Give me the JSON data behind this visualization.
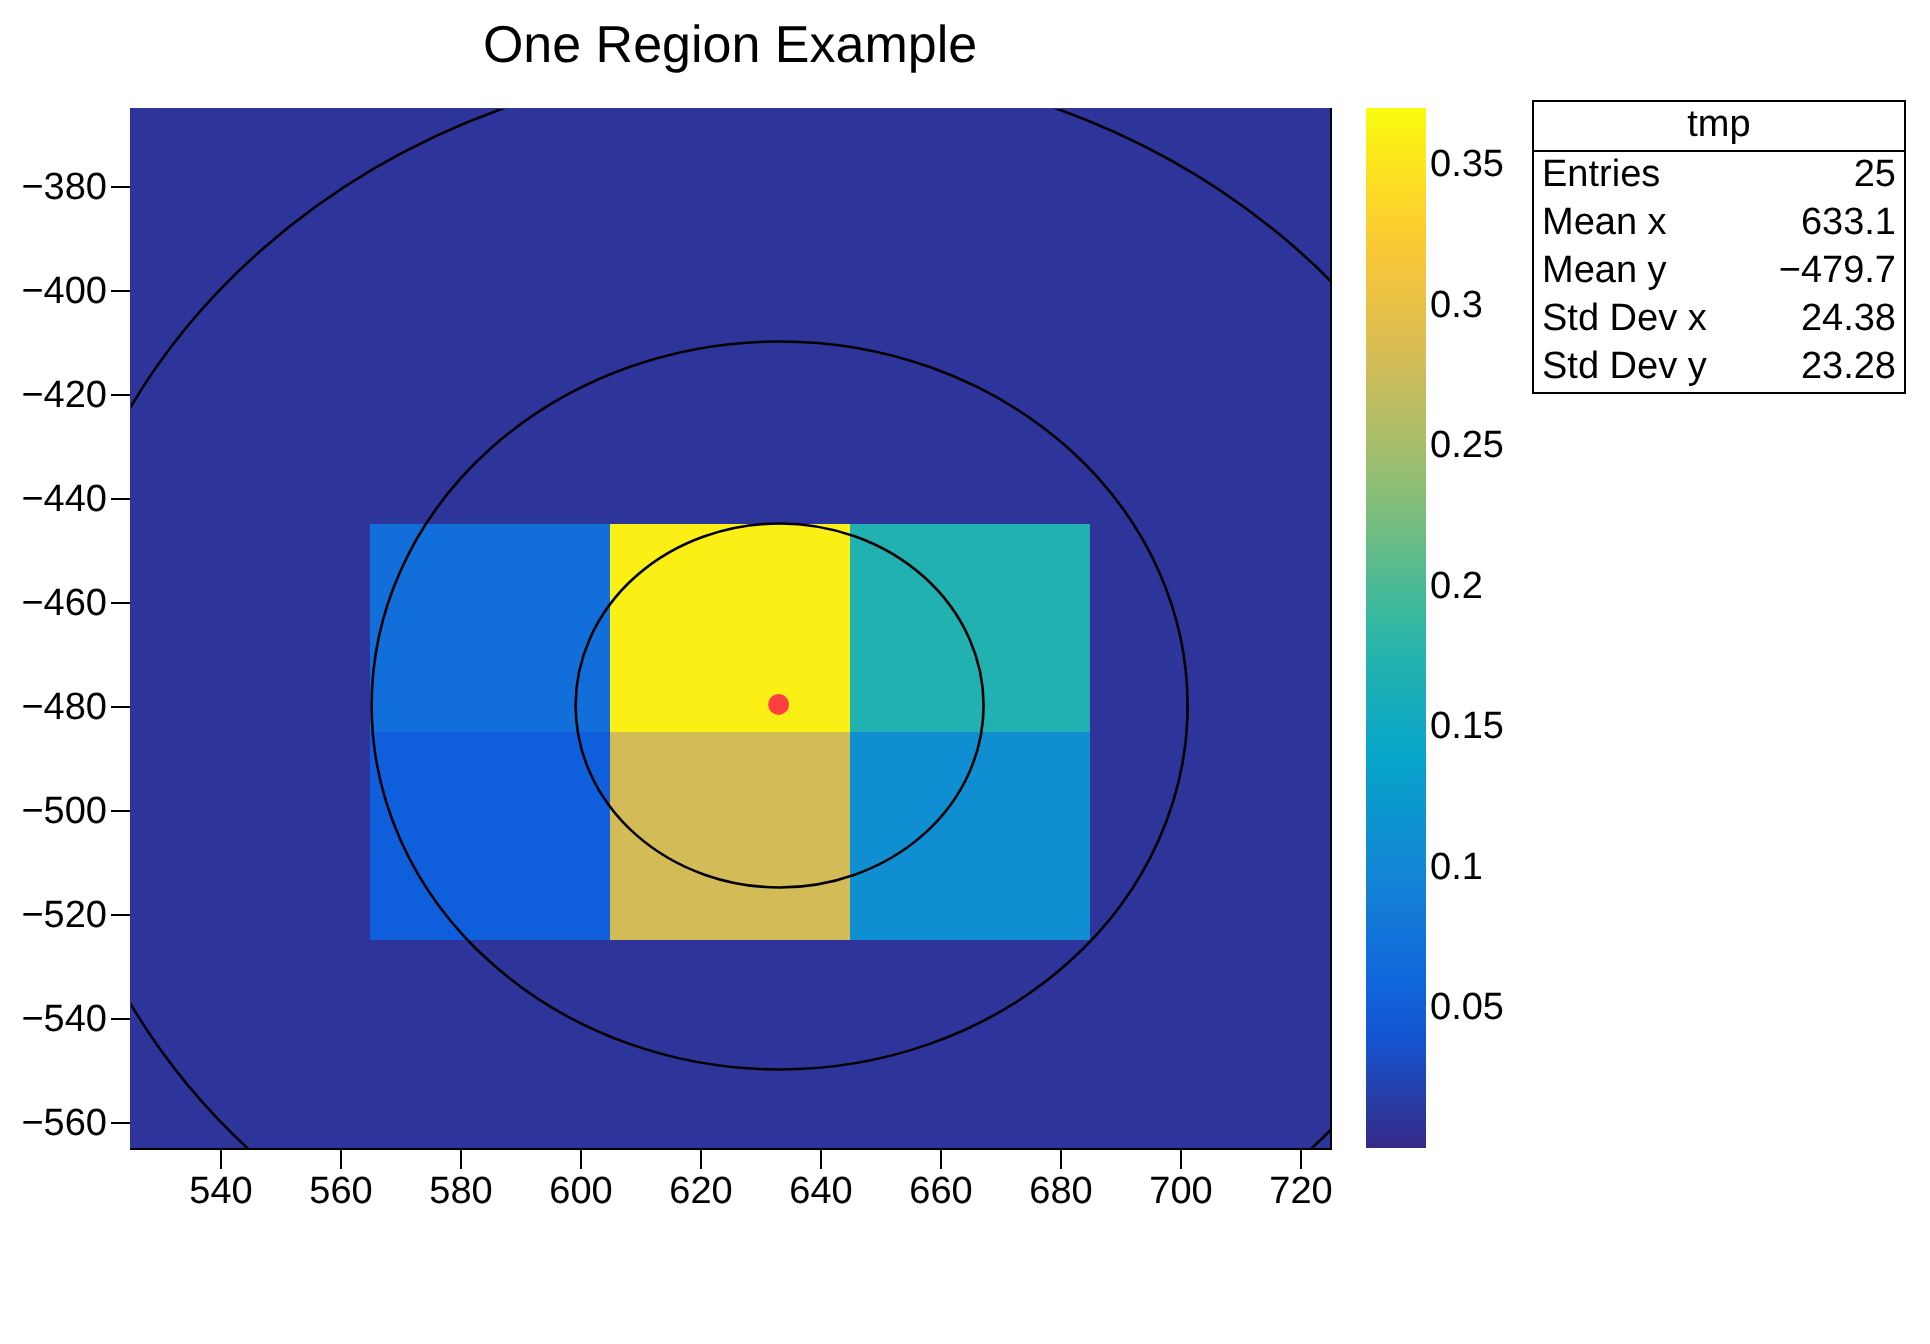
{
  "chart_data": {
    "type": "heatmap",
    "title": "One Region Example",
    "xlim": [
      525,
      725
    ],
    "ylim": [
      -565,
      -365
    ],
    "xticks": [
      540,
      560,
      580,
      600,
      620,
      640,
      660,
      680,
      700,
      720
    ],
    "yticks": [
      -560,
      -540,
      -520,
      -500,
      -480,
      -460,
      -440,
      -420,
      -400,
      -380
    ],
    "cells": [
      [
        0.01,
        0.01,
        0.01,
        0.01,
        0.01
      ],
      [
        0.01,
        0.01,
        0.01,
        0.01,
        0.01
      ],
      [
        0.01,
        0.07,
        0.36,
        0.17,
        0.01
      ],
      [
        0.01,
        0.05,
        0.28,
        0.11,
        0.01
      ],
      [
        0.01,
        0.01,
        0.01,
        0.01,
        0.01
      ]
    ],
    "clim": [
      0,
      0.37
    ],
    "cticks": [
      0.05,
      0.1,
      0.15,
      0.2,
      0.25,
      0.3,
      0.35
    ],
    "series": [
      {
        "type": "scatter",
        "color": "#ff4040",
        "marker": "circle",
        "x": [
          633.1
        ],
        "values": [
          -479.7
        ]
      }
    ],
    "annotations": [
      "tmp",
      "Entries 25",
      "Mean x 633.1",
      "Mean y −479.7",
      "Std Dev x 24.38",
      "Std Dev y 23.28"
    ]
  }
}
